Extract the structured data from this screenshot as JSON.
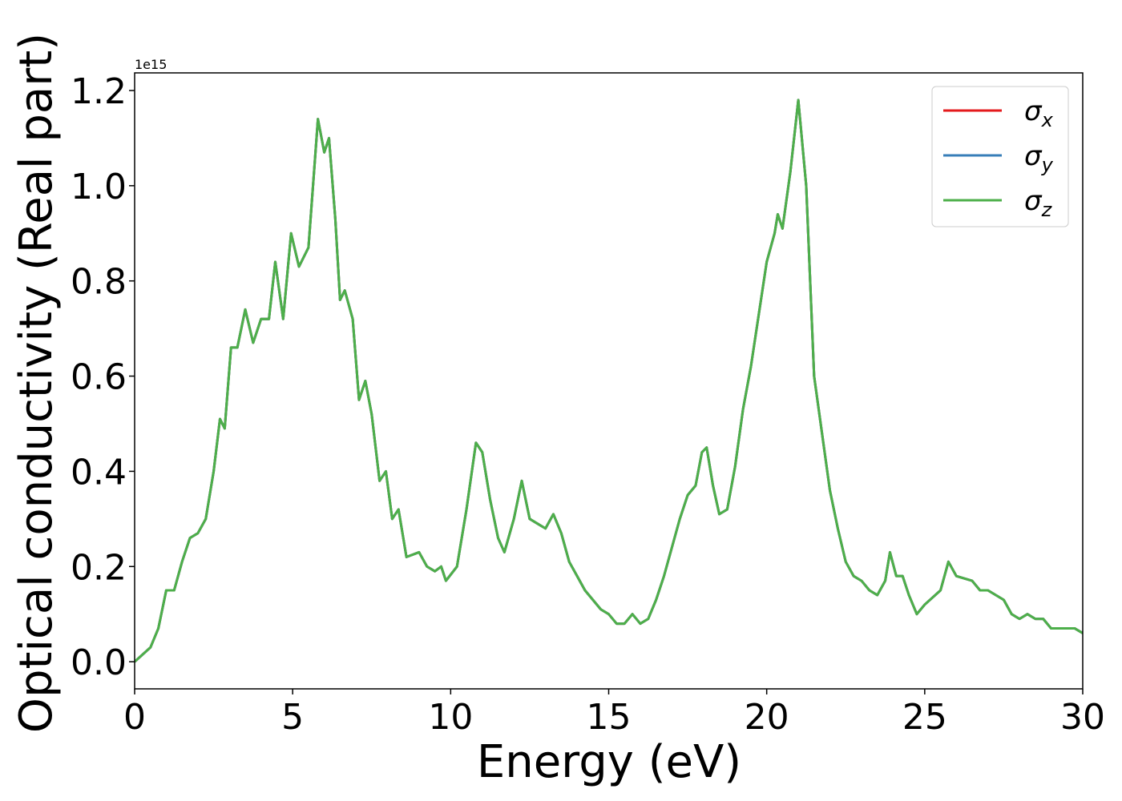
{
  "chart_data": {
    "type": "line",
    "xlabel": "Energy (eV)",
    "ylabel": "Optical conductivity (Real part)",
    "y_offset_label": "1e15",
    "x": [
      0,
      0.5,
      0.75,
      1,
      1.25,
      1.5,
      1.75,
      2,
      2.25,
      2.5,
      2.7,
      2.85,
      3.05,
      3.25,
      3.5,
      3.75,
      4,
      4.25,
      4.45,
      4.7,
      4.95,
      5.2,
      5.5,
      5.8,
      6,
      6.15,
      6.35,
      6.5,
      6.65,
      6.9,
      7.1,
      7.3,
      7.5,
      7.75,
      7.95,
      8.15,
      8.35,
      8.6,
      9,
      9.25,
      9.5,
      9.7,
      9.85,
      10.2,
      10.5,
      10.8,
      11,
      11.25,
      11.5,
      11.7,
      12,
      12.25,
      12.5,
      12.75,
      13,
      13.25,
      13.5,
      13.75,
      14,
      14.25,
      14.5,
      14.75,
      15,
      15.25,
      15.5,
      15.75,
      16,
      16.25,
      16.5,
      16.75,
      17,
      17.25,
      17.5,
      17.75,
      17.95,
      18.1,
      18.3,
      18.5,
      18.75,
      19,
      19.25,
      19.5,
      19.75,
      20,
      20.25,
      20.35,
      20.5,
      20.75,
      21,
      21.25,
      21.5,
      21.75,
      22,
      22.25,
      22.5,
      22.75,
      23,
      23.25,
      23.5,
      23.75,
      23.9,
      24.1,
      24.3,
      24.5,
      24.75,
      25,
      25.5,
      25.75,
      26,
      26.5,
      26.75,
      27,
      27.5,
      27.75,
      28,
      28.25,
      28.5,
      28.75,
      29,
      29.25,
      29.5,
      29.75,
      30
    ],
    "series": [
      {
        "name": "σx",
        "color": "#e41a1c",
        "values": [
          0,
          0.03,
          0.07,
          0.15,
          0.15,
          0.21,
          0.26,
          0.27,
          0.3,
          0.4,
          0.51,
          0.49,
          0.66,
          0.66,
          0.74,
          0.67,
          0.72,
          0.72,
          0.84,
          0.72,
          0.9,
          0.83,
          0.87,
          1.14,
          1.07,
          1.1,
          0.93,
          0.76,
          0.78,
          0.72,
          0.55,
          0.59,
          0.52,
          0.38,
          0.4,
          0.3,
          0.32,
          0.22,
          0.23,
          0.2,
          0.19,
          0.2,
          0.17,
          0.2,
          0.32,
          0.46,
          0.44,
          0.34,
          0.26,
          0.23,
          0.3,
          0.38,
          0.3,
          0.29,
          0.28,
          0.31,
          0.27,
          0.21,
          0.18,
          0.15,
          0.13,
          0.11,
          0.1,
          0.08,
          0.08,
          0.1,
          0.08,
          0.09,
          0.13,
          0.18,
          0.24,
          0.3,
          0.35,
          0.37,
          0.44,
          0.45,
          0.37,
          0.31,
          0.32,
          0.41,
          0.53,
          0.62,
          0.73,
          0.84,
          0.9,
          0.94,
          0.91,
          1.03,
          1.18,
          1,
          0.6,
          0.48,
          0.36,
          0.28,
          0.21,
          0.18,
          0.17,
          0.15,
          0.14,
          0.17,
          0.23,
          0.18,
          0.18,
          0.14,
          0.1,
          0.12,
          0.15,
          0.21,
          0.18,
          0.17,
          0.15,
          0.15,
          0.13,
          0.1,
          0.09,
          0.1,
          0.09,
          0.09,
          0.07,
          0.07,
          0.07,
          0.07,
          0.06
        ]
      },
      {
        "name": "σy",
        "color": "#377eb8",
        "values": [
          0,
          0.03,
          0.07,
          0.15,
          0.15,
          0.21,
          0.26,
          0.27,
          0.3,
          0.4,
          0.51,
          0.49,
          0.66,
          0.66,
          0.74,
          0.67,
          0.72,
          0.72,
          0.84,
          0.72,
          0.9,
          0.83,
          0.87,
          1.14,
          1.07,
          1.1,
          0.93,
          0.76,
          0.78,
          0.72,
          0.55,
          0.59,
          0.52,
          0.38,
          0.4,
          0.3,
          0.32,
          0.22,
          0.23,
          0.2,
          0.19,
          0.2,
          0.17,
          0.2,
          0.32,
          0.46,
          0.44,
          0.34,
          0.26,
          0.23,
          0.3,
          0.38,
          0.3,
          0.29,
          0.28,
          0.31,
          0.27,
          0.21,
          0.18,
          0.15,
          0.13,
          0.11,
          0.1,
          0.08,
          0.08,
          0.1,
          0.08,
          0.09,
          0.13,
          0.18,
          0.24,
          0.3,
          0.35,
          0.37,
          0.44,
          0.45,
          0.37,
          0.31,
          0.32,
          0.41,
          0.53,
          0.62,
          0.73,
          0.84,
          0.9,
          0.94,
          0.91,
          1.03,
          1.18,
          1,
          0.6,
          0.48,
          0.36,
          0.28,
          0.21,
          0.18,
          0.17,
          0.15,
          0.14,
          0.17,
          0.23,
          0.18,
          0.18,
          0.14,
          0.1,
          0.12,
          0.15,
          0.21,
          0.18,
          0.17,
          0.15,
          0.15,
          0.13,
          0.1,
          0.09,
          0.1,
          0.09,
          0.09,
          0.07,
          0.07,
          0.07,
          0.07,
          0.06
        ]
      },
      {
        "name": "σz",
        "color": "#4daf4a",
        "values": [
          0,
          0.03,
          0.07,
          0.15,
          0.15,
          0.21,
          0.26,
          0.27,
          0.3,
          0.4,
          0.51,
          0.49,
          0.66,
          0.66,
          0.74,
          0.67,
          0.72,
          0.72,
          0.84,
          0.72,
          0.9,
          0.83,
          0.87,
          1.14,
          1.07,
          1.1,
          0.93,
          0.76,
          0.78,
          0.72,
          0.55,
          0.59,
          0.52,
          0.38,
          0.4,
          0.3,
          0.32,
          0.22,
          0.23,
          0.2,
          0.19,
          0.2,
          0.17,
          0.2,
          0.32,
          0.46,
          0.44,
          0.34,
          0.26,
          0.23,
          0.3,
          0.38,
          0.3,
          0.29,
          0.28,
          0.31,
          0.27,
          0.21,
          0.18,
          0.15,
          0.13,
          0.11,
          0.1,
          0.08,
          0.08,
          0.1,
          0.08,
          0.09,
          0.13,
          0.18,
          0.24,
          0.3,
          0.35,
          0.37,
          0.44,
          0.45,
          0.37,
          0.31,
          0.32,
          0.41,
          0.53,
          0.62,
          0.73,
          0.84,
          0.9,
          0.94,
          0.91,
          1.03,
          1.18,
          1,
          0.6,
          0.48,
          0.36,
          0.28,
          0.21,
          0.18,
          0.17,
          0.15,
          0.14,
          0.17,
          0.23,
          0.18,
          0.18,
          0.14,
          0.1,
          0.12,
          0.15,
          0.21,
          0.18,
          0.17,
          0.15,
          0.15,
          0.13,
          0.1,
          0.09,
          0.1,
          0.09,
          0.09,
          0.07,
          0.07,
          0.07,
          0.07,
          0.06
        ]
      }
    ],
    "xlim": [
      0,
      30
    ],
    "xticks": [
      0,
      5,
      10,
      15,
      20,
      25,
      30
    ],
    "ylim": [
      -0.057,
      1.237
    ],
    "yticks": [
      {
        "value": 0,
        "label": "0.0"
      },
      0.2,
      0.4,
      0.6,
      0.8,
      {
        "value": 1,
        "label": "1.0"
      },
      1.2
    ],
    "grid": false,
    "legend": "upper right"
  }
}
